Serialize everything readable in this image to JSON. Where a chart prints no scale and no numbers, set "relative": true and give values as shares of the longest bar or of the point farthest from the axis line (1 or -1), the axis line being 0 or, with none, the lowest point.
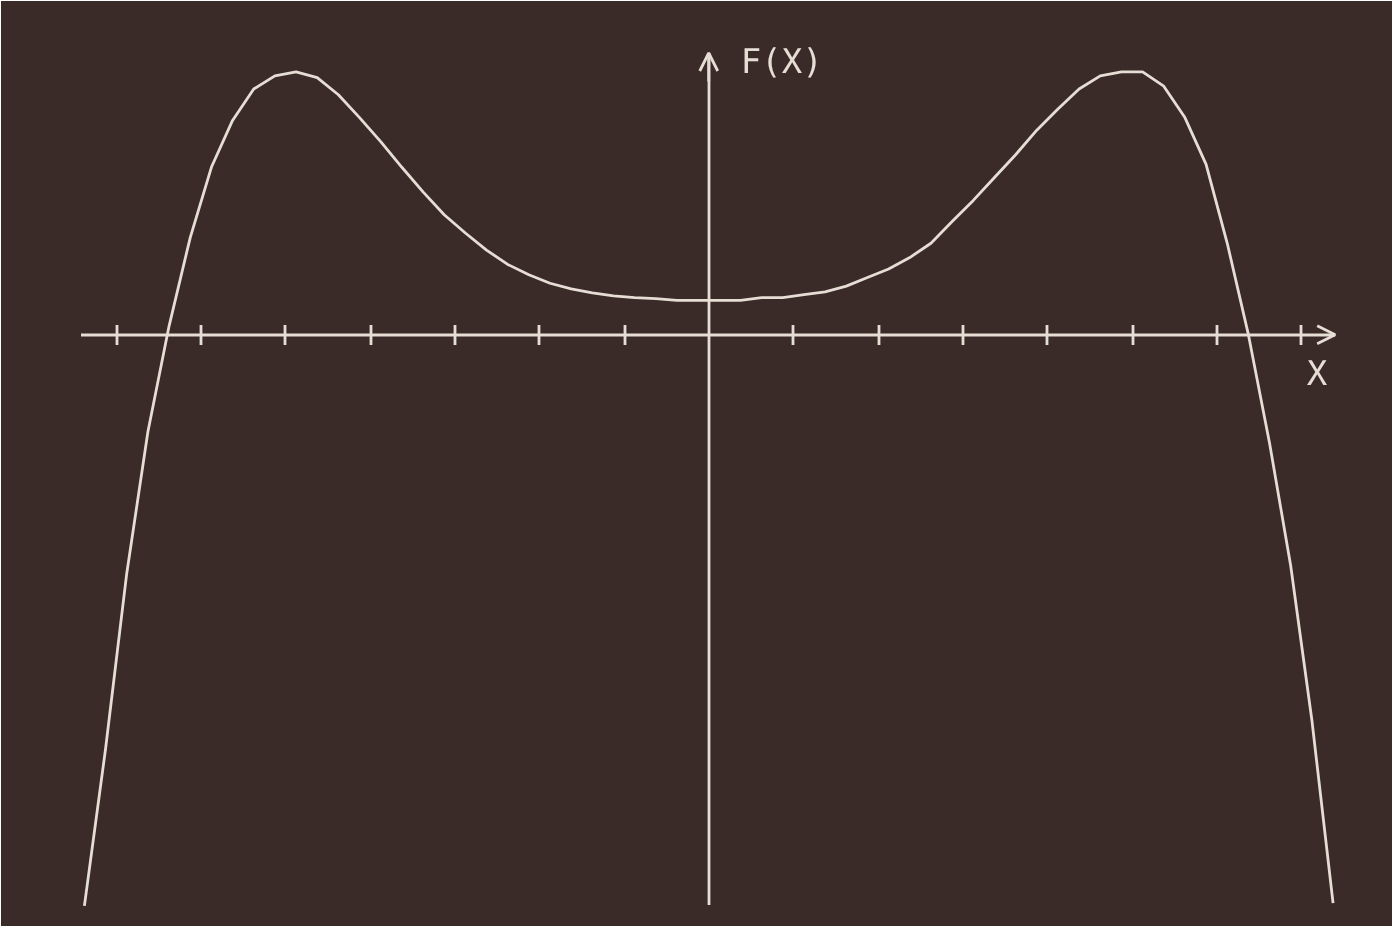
{
  "chart_data": {
    "type": "line",
    "relative": true,
    "xlabel": "X",
    "ylabel": "F(X)",
    "categories": [
      null,
      null,
      null,
      null,
      null,
      null,
      null,
      null,
      null,
      null,
      null,
      null,
      null,
      null,
      null,
      null,
      null,
      null,
      null,
      null,
      null,
      null,
      null,
      null,
      null,
      null,
      null,
      null,
      null,
      null,
      null,
      null,
      null,
      null,
      null,
      null,
      null,
      null,
      null,
      null,
      null,
      null,
      null,
      null,
      null,
      null,
      null,
      null,
      null,
      null,
      null,
      null,
      null,
      null,
      null,
      null,
      null,
      null,
      null,
      null
    ],
    "series": [
      {
        "color": "#e6ded4",
        "values": [
          -1,
          -0.725,
          -0.418,
          -0.17,
          0.015,
          0.17,
          0.293,
          0.375,
          0.43,
          0.453,
          0.46,
          0.45,
          0.42,
          0.38,
          0.338,
          0.293,
          0.25,
          0.21,
          0.178,
          0.148,
          0.123,
          0.105,
          0.09,
          0.08,
          0.073,
          0.068,
          0.065,
          0.063,
          0.06,
          0.06,
          0.06,
          0.06,
          0.065,
          0.065,
          0.07,
          0.075,
          0.085,
          0.1,
          0.115,
          0.135,
          0.16,
          0.198,
          0.235,
          0.275,
          0.315,
          0.358,
          0.395,
          0.43,
          0.453,
          0.46,
          0.46,
          0.435,
          0.38,
          0.298,
          0.16,
          0,
          -0.19,
          -0.405,
          -0.675,
          -0.995
        ]
      }
    ],
    "grid": false
  }
}
